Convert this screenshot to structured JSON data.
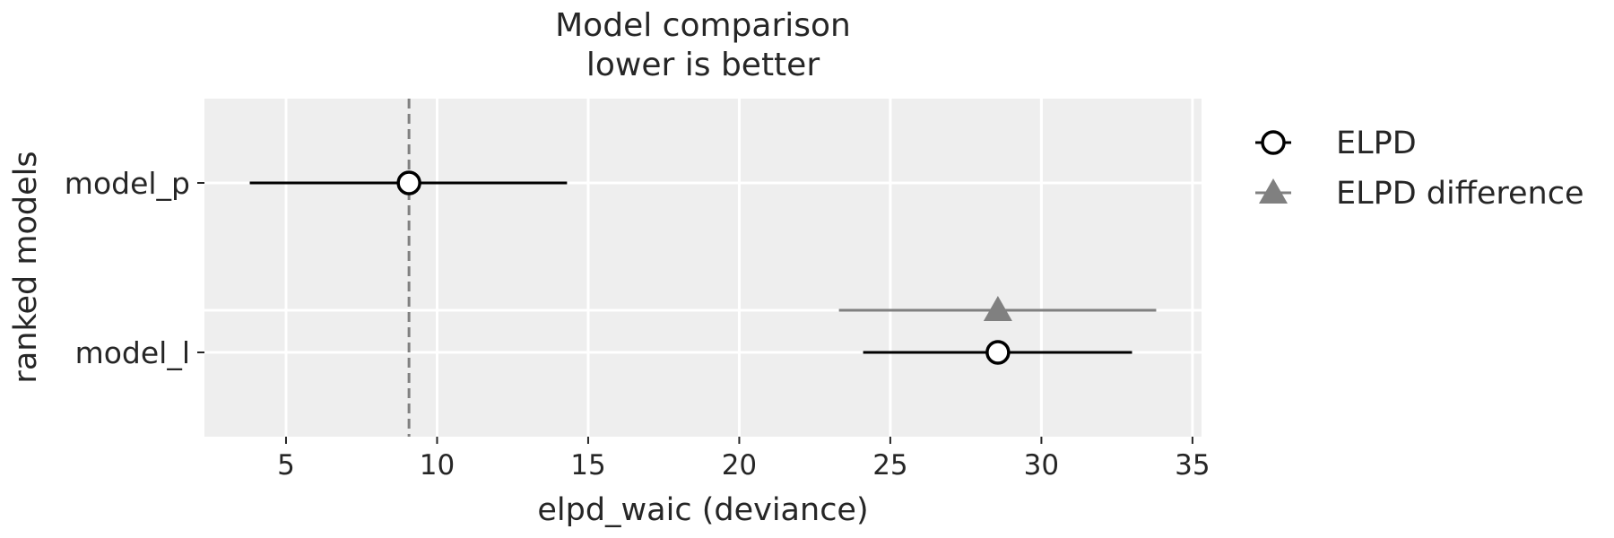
{
  "chart_data": {
    "type": "scatter",
    "title_lines": [
      "Model comparison",
      "lower is better"
    ],
    "xlabel": "elpd_waic (deviance)",
    "ylabel": "ranked models",
    "xlim": [
      2.3,
      35.3
    ],
    "xticks": [
      5,
      10,
      15,
      20,
      25,
      30,
      35
    ],
    "models": [
      "model_p",
      "model_l"
    ],
    "grid": true,
    "legend_position": "right",
    "reference_line": 9.07,
    "series": [
      {
        "name": "ELPD",
        "marker": "circle",
        "points": [
          {
            "model": "model_p",
            "value": 9.07,
            "low": 3.8,
            "high": 14.3
          },
          {
            "model": "model_l",
            "value": 28.56,
            "low": 24.1,
            "high": 33.0
          }
        ]
      },
      {
        "name": "ELPD difference",
        "marker": "triangle",
        "points": [
          {
            "model": "model_l",
            "value": 28.56,
            "low": 23.3,
            "high": 33.8
          }
        ]
      }
    ],
    "colors": {
      "background": "#eeeeee",
      "grid": "#ffffff",
      "elpd": "#000000",
      "difference": "#808080",
      "reference": "#808080"
    }
  }
}
